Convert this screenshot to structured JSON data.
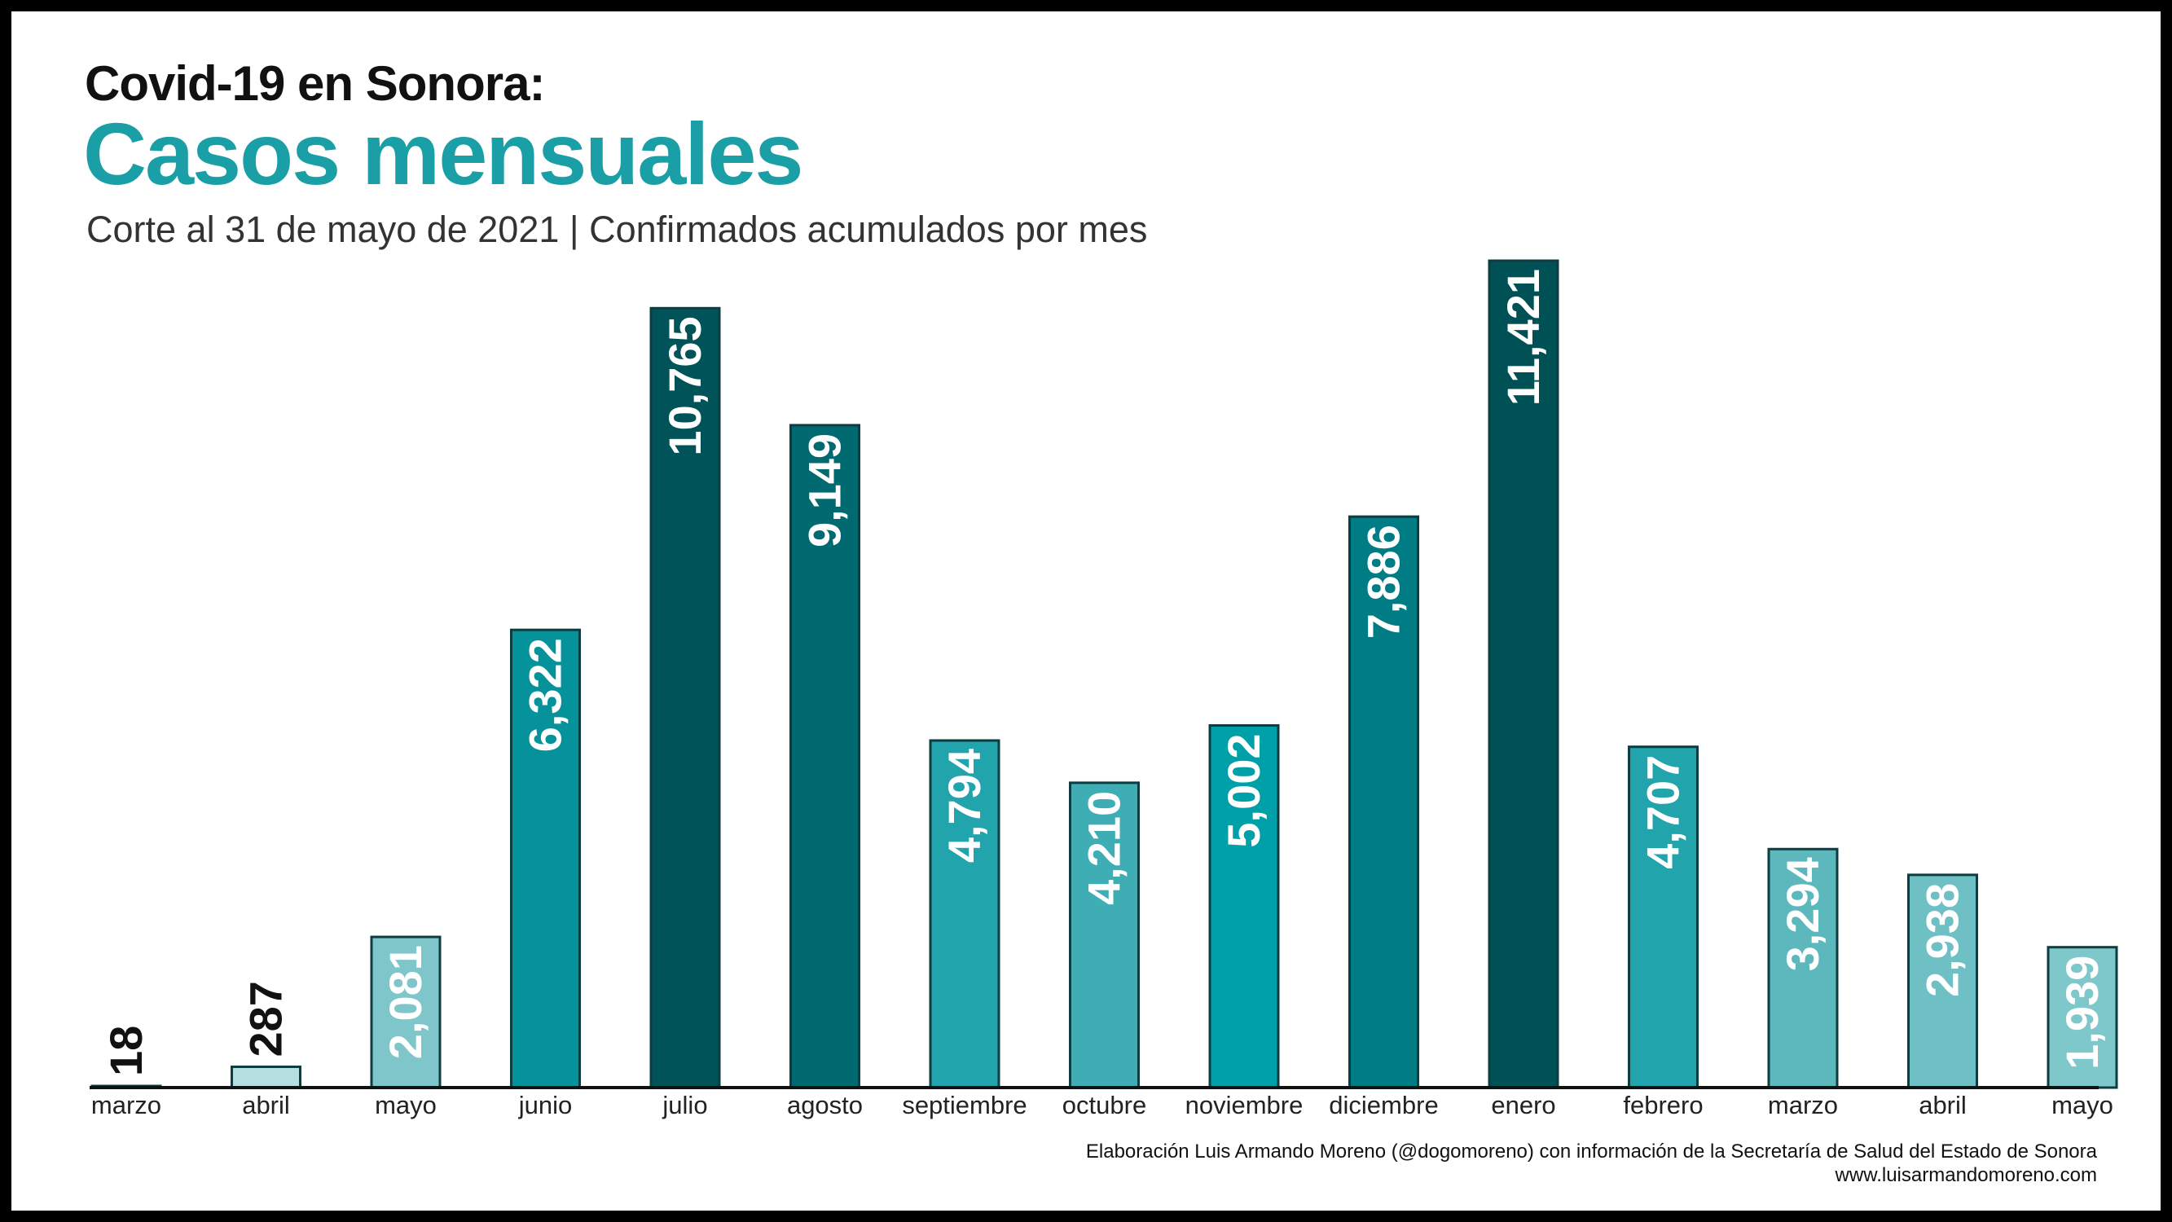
{
  "header": {
    "title": "Covid-19 en Sonora:",
    "heading": "Casos mensuales",
    "subtitle": "Corte al 31 de mayo de 2021 | Confirmados acumulados por mes"
  },
  "footer": {
    "credit": "Elaboración Luis Armando Moreno (@dogomoreno) con información de la Secretaría de Salud del Estado de Sonora",
    "website": "www.luisarmandomoreno.com"
  },
  "colors": {
    "heading": "#1a9fa6",
    "axis": "#111111",
    "bar_stroke": "#0d3d40"
  },
  "chart_data": {
    "type": "bar",
    "title": "Casos mensuales",
    "subtitle": "Corte al 31 de mayo de 2021 | Confirmados acumulados por mes",
    "xlabel": "",
    "ylabel": "",
    "grid": false,
    "ylim": [
      0,
      11421
    ],
    "categories": [
      "marzo",
      "abril",
      "mayo",
      "junio",
      "julio",
      "agosto",
      "septiembre",
      "octubre",
      "noviembre",
      "diciembre",
      "enero",
      "febrero",
      "marzo",
      "abril",
      "mayo"
    ],
    "values": [
      18,
      287,
      2081,
      6322,
      10765,
      9149,
      4794,
      4210,
      5002,
      7886,
      11421,
      4707,
      3294,
      2938,
      1939
    ],
    "value_labels": [
      "18",
      "287",
      "2,081",
      "6,322",
      "10,765",
      "9,149",
      "4,794",
      "4,210",
      "5,002",
      "7,886",
      "11,421",
      "4,707",
      "3,294",
      "2,938",
      "1,939"
    ],
    "bar_colors": [
      "#2a9ea6",
      "#b6dfe0",
      "#7ec6ca",
      "#05929a",
      "#005358",
      "#006a70",
      "#22a4ad",
      "#3eadb4",
      "#00a0a8",
      "#007c84",
      "#005156",
      "#21a4ac",
      "#5cb8bd",
      "#6fc0c5",
      "#7ec7cb"
    ],
    "label_colors": [
      "#111111",
      "#111111",
      "#ffffff",
      "#ffffff",
      "#ffffff",
      "#ffffff",
      "#ffffff",
      "#ffffff",
      "#ffffff",
      "#ffffff",
      "#ffffff",
      "#ffffff",
      "#ffffff",
      "#ffffff",
      "#ffffff"
    ]
  }
}
